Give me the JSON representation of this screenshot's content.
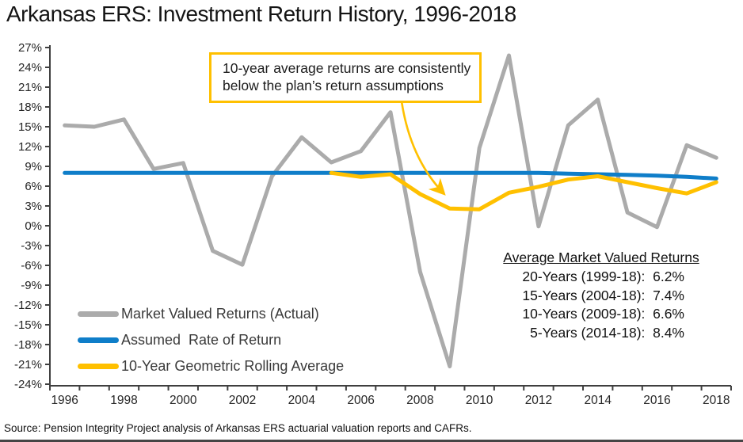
{
  "title": "Arkansas ERS: Investment Return History, 1996-2018",
  "annotation": {
    "line1": "10-year average returns are consistently",
    "line2": "below the plan’s return assumptions"
  },
  "stats": {
    "title": "Average Market Valued Returns",
    "lines": [
      "20-Years (1999-18):  6.2%",
      "15-Years (2004-18):  7.4%",
      "10-Years (2009-18):  6.6%",
      "5-Years (2014-18):  8.4%"
    ]
  },
  "legend": [
    {
      "label": "Market Valued Returns (Actual)",
      "color": "#ABABAB"
    },
    {
      "label": "Assumed  Rate of Return",
      "color": "#0F7EC9"
    },
    {
      "label": "10-Year Geometric Rolling Average",
      "color": "#FFC000"
    }
  ],
  "source": "Source: Pension Integrity Project analysis of Arkansas ERS actuarial valuation reports and CAFRs.",
  "colors": {
    "actual": "#ABABAB",
    "assumed": "#0F7EC9",
    "rolling": "#FFC000",
    "axis": "#3f3f3f",
    "tick_text": "#262626",
    "annotation_border": "#FFC000"
  },
  "chart_data": {
    "type": "line",
    "title": "Arkansas ERS: Investment Return History, 1996-2018",
    "xlabel": "",
    "ylabel": "",
    "ylim": [
      -24,
      27
    ],
    "ytick_step": 3,
    "ytick_suffix": "%",
    "grid": false,
    "legend_position": "inside bottom-left",
    "x": [
      1996,
      1997,
      1998,
      1999,
      2000,
      2001,
      2002,
      2003,
      2004,
      2005,
      2006,
      2007,
      2008,
      2009,
      2010,
      2011,
      2012,
      2013,
      2014,
      2015,
      2016,
      2017,
      2018
    ],
    "x_tick_labels": [
      "1996",
      "1998",
      "2000",
      "2002",
      "2004",
      "2006",
      "2008",
      "2010",
      "2012",
      "2014",
      "2016",
      "2018"
    ],
    "series": [
      {
        "name": "Market Valued Returns (Actual)",
        "color": "#ABABAB",
        "values": [
          15.2,
          15.0,
          16.1,
          8.6,
          9.5,
          -3.8,
          -5.9,
          7.5,
          13.4,
          9.6,
          11.3,
          17.2,
          -7.0,
          -21.3,
          11.8,
          25.8,
          -0.1,
          15.2,
          19.1,
          2.0,
          -0.2,
          12.2,
          10.3
        ]
      },
      {
        "name": "Assumed Rate of Return",
        "color": "#0F7EC9",
        "values": [
          8.0,
          8.0,
          8.0,
          8.0,
          8.0,
          8.0,
          8.0,
          8.0,
          8.0,
          8.0,
          8.0,
          8.0,
          8.0,
          8.0,
          8.0,
          8.0,
          8.0,
          7.9,
          7.8,
          7.7,
          7.6,
          7.4,
          7.15
        ]
      },
      {
        "name": "10-Year Geometric Rolling Average",
        "color": "#FFC000",
        "values": [
          null,
          null,
          null,
          null,
          null,
          null,
          null,
          null,
          null,
          8.0,
          7.4,
          7.8,
          4.8,
          2.6,
          2.5,
          5.0,
          5.9,
          7.0,
          7.5,
          6.6,
          5.7,
          4.9,
          6.6
        ]
      }
    ]
  }
}
